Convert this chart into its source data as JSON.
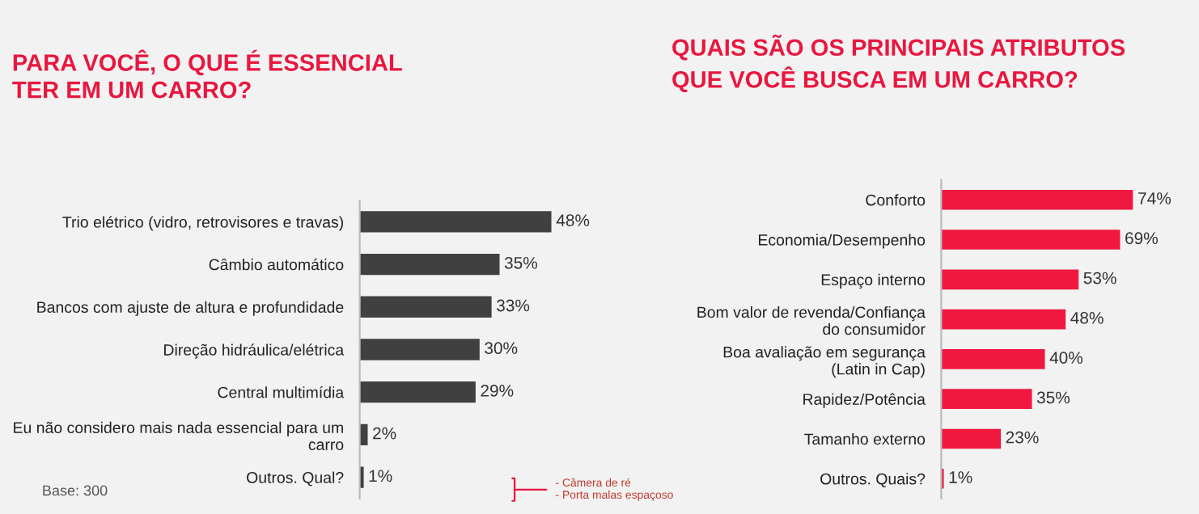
{
  "chart_data": [
    {
      "type": "bar",
      "orientation": "horizontal",
      "title": "PARA VOCÊ, O QUE É ESSENCIAL TER EM UM CARRO?",
      "categories": [
        "Trio elétrico (vidro, retrovisores e travas)",
        "Câmbio automático",
        "Bancos com ajuste de altura e profundidade",
        "Direção hidráulica/elétrica",
        "Central multimídia",
        "Eu não considero mais nada essencial para um carro",
        "Outros. Qual?"
      ],
      "values": [
        48,
        35,
        33,
        30,
        29,
        2,
        1
      ],
      "value_labels": [
        "48%",
        "35%",
        "33%",
        "30%",
        "29%",
        "2%",
        "1%"
      ],
      "color": "#404040",
      "tick_labels": "y",
      "grid": false,
      "legend": false,
      "annotations": [
        "Base: 300",
        "- Câmera de ré\n- Porta malas espaçoso"
      ]
    },
    {
      "type": "bar",
      "orientation": "horizontal",
      "title": "QUAIS SÃO OS PRINCIPAIS ATRIBUTOS QUE VOCÊ BUSCA EM UM CARRO?",
      "categories": [
        "Conforto",
        "Economia/Desempenho",
        "Espaço interno",
        "Bom valor de revenda/Confiança do consumidor",
        "Boa avaliação em segurança (Latin in Cap)",
        "Rapidez/Potência",
        "Tamanho externo",
        "Outros. Quais?"
      ],
      "values": [
        74,
        69,
        53,
        48,
        40,
        35,
        23,
        1
      ],
      "value_labels": [
        "74%",
        "69%",
        "53%",
        "48%",
        "40%",
        "35%",
        "23%",
        "1%"
      ],
      "color": "#f0183f",
      "tick_labels": "y",
      "grid": false,
      "legend": false
    }
  ]
}
